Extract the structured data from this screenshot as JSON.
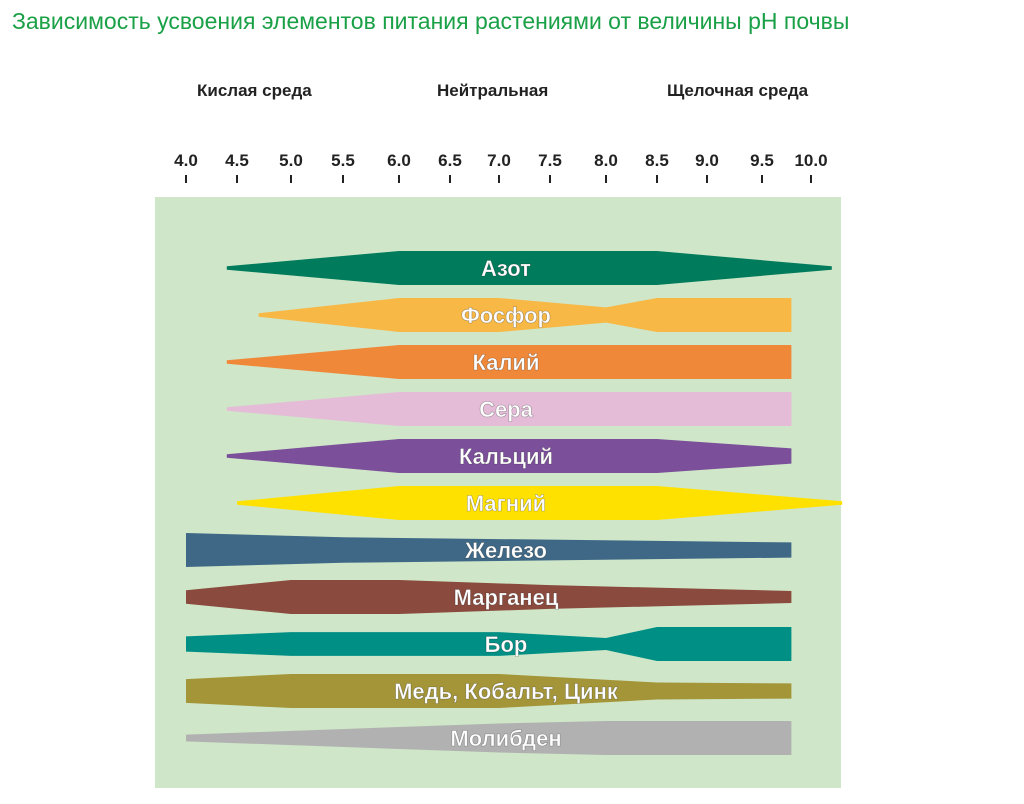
{
  "title": "Зависимость усвоения элементов питания растениями от величины pH почвы",
  "zones": [
    "Кислая среда",
    "Нейтральная",
    "Щелочная среда"
  ],
  "colors": {
    "title": "#1aa046",
    "background_panel": "#cfe6c8"
  },
  "chart_data": {
    "type": "area",
    "title": "Зависимость усвоения элементов питания растениями от величины pH почвы",
    "x_axis": {
      "ticks": [
        "4.0",
        "4.5",
        "5.0",
        "5.5",
        "6.0",
        "6.5",
        "7.0",
        "7.5",
        "8.0",
        "8.5",
        "9.0",
        "9.5",
        "10.0"
      ],
      "range": [
        4.0,
        10.0
      ]
    },
    "series": [
      {
        "name": "Азот",
        "color": "#007b5c",
        "points": [
          [
            4.4,
            0.1
          ],
          [
            6.0,
            1
          ],
          [
            8.5,
            1
          ],
          [
            10.2,
            0.1
          ]
        ]
      },
      {
        "name": "Фосфор",
        "color": "#f8b846",
        "points": [
          [
            4.7,
            0.1
          ],
          [
            6.0,
            1
          ],
          [
            7.0,
            1
          ],
          [
            8.0,
            0.45
          ],
          [
            8.5,
            1
          ],
          [
            9.8,
            1
          ]
        ]
      },
      {
        "name": "Калий",
        "color": "#f0883a",
        "points": [
          [
            4.4,
            0.1
          ],
          [
            6.0,
            1
          ],
          [
            9.8,
            1
          ]
        ]
      },
      {
        "name": "Сера",
        "color": "#e4bcd8",
        "points": [
          [
            4.4,
            0.1
          ],
          [
            6.0,
            1
          ],
          [
            9.8,
            1
          ]
        ]
      },
      {
        "name": "Кальций",
        "color": "#7b4f9a",
        "points": [
          [
            4.4,
            0.1
          ],
          [
            6.0,
            1
          ],
          [
            8.5,
            1
          ],
          [
            9.8,
            0.45
          ]
        ]
      },
      {
        "name": "Магний",
        "color": "#ffe100",
        "points": [
          [
            4.5,
            0.1
          ],
          [
            6.0,
            1
          ],
          [
            8.5,
            1
          ],
          [
            10.3,
            0.1
          ]
        ]
      },
      {
        "name": "Железо",
        "color": "#3e6886",
        "points": [
          [
            4.0,
            1
          ],
          [
            5.5,
            0.75
          ],
          [
            9.8,
            0.45
          ]
        ]
      },
      {
        "name": "Марганец",
        "color": "#8a4a3d",
        "points": [
          [
            4.0,
            0.4
          ],
          [
            5.0,
            1
          ],
          [
            6.0,
            1
          ],
          [
            7.5,
            0.7
          ],
          [
            9.8,
            0.35
          ]
        ]
      },
      {
        "name": "Бор",
        "color": "#008f84",
        "points": [
          [
            4.0,
            0.45
          ],
          [
            5.0,
            0.7
          ],
          [
            7.0,
            0.7
          ],
          [
            8.0,
            0.35
          ],
          [
            8.5,
            1
          ],
          [
            9.8,
            1
          ]
        ]
      },
      {
        "name": "Медь, Кобальт, Цинк",
        "color": "#a39538",
        "points": [
          [
            4.0,
            0.7
          ],
          [
            5.0,
            1
          ],
          [
            7.0,
            1
          ],
          [
            8.5,
            0.5
          ],
          [
            9.8,
            0.45
          ]
        ]
      },
      {
        "name": "Молибден",
        "color": "#b1b1b1",
        "points": [
          [
            4.0,
            0.2
          ],
          [
            7.0,
            0.85
          ],
          [
            8.0,
            1
          ],
          [
            9.8,
            1
          ]
        ]
      }
    ]
  }
}
